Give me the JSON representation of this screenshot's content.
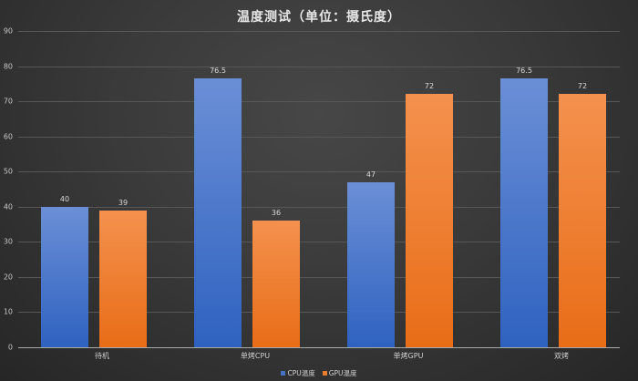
{
  "chart_data": {
    "type": "bar",
    "title": "温度测试（单位：摄氏度）",
    "xlabel": "",
    "ylabel": "",
    "categories": [
      "待机",
      "单烤CPU",
      "单烤GPU",
      "双烤"
    ],
    "series": [
      {
        "name": "CPU温度",
        "color": "#4472c4",
        "values": [
          40,
          76.5,
          47,
          76.5
        ]
      },
      {
        "name": "GPU温度",
        "color": "#ed7d31",
        "values": [
          39,
          36,
          72,
          72
        ]
      }
    ],
    "ylim": [
      0,
      90
    ],
    "yticks": [
      0,
      10,
      20,
      30,
      40,
      50,
      60,
      70,
      80,
      90
    ],
    "grid": true,
    "legend_position": "bottom",
    "data_labels": true
  },
  "labels": {
    "title": "温度测试（单位：摄氏度）",
    "yticks": [
      "0",
      "10",
      "20",
      "30",
      "40",
      "50",
      "60",
      "70",
      "80",
      "90"
    ],
    "categories": [
      "待机",
      "单烤CPU",
      "单烤GPU",
      "双烤"
    ],
    "cpu_values": [
      "40",
      "76.5",
      "47",
      "76.5"
    ],
    "gpu_values": [
      "39",
      "36",
      "72",
      "72"
    ],
    "legend": [
      "CPU温度",
      "GPU温度"
    ]
  }
}
